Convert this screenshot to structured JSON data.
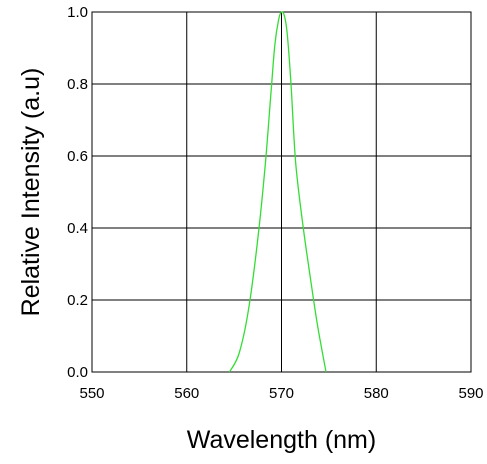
{
  "chart_data": {
    "type": "line",
    "title": "",
    "xlabel": "Wavelength (nm)",
    "ylabel": "Relative Intensity (a.u)",
    "xlim": [
      550,
      590
    ],
    "ylim": [
      0.0,
      1.0
    ],
    "x_ticks": [
      "550",
      "560",
      "570",
      "580",
      "590"
    ],
    "y_ticks": [
      "0.0",
      "0.2",
      "0.4",
      "0.6",
      "0.8",
      "1.0"
    ],
    "grid": true,
    "series": [
      {
        "color": "#33dd33",
        "x": [
          564.5,
          565.5,
          566.5,
          567.5,
          568.3,
          568.9,
          569.3,
          569.7,
          570.0,
          570.3,
          570.6,
          571.0,
          571.5,
          572.3,
          573.0,
          573.8,
          574.7
        ],
        "y": [
          0.0,
          0.05,
          0.17,
          0.37,
          0.58,
          0.78,
          0.91,
          0.98,
          1.0,
          0.99,
          0.94,
          0.8,
          0.58,
          0.4,
          0.27,
          0.13,
          0.0
        ]
      }
    ]
  }
}
